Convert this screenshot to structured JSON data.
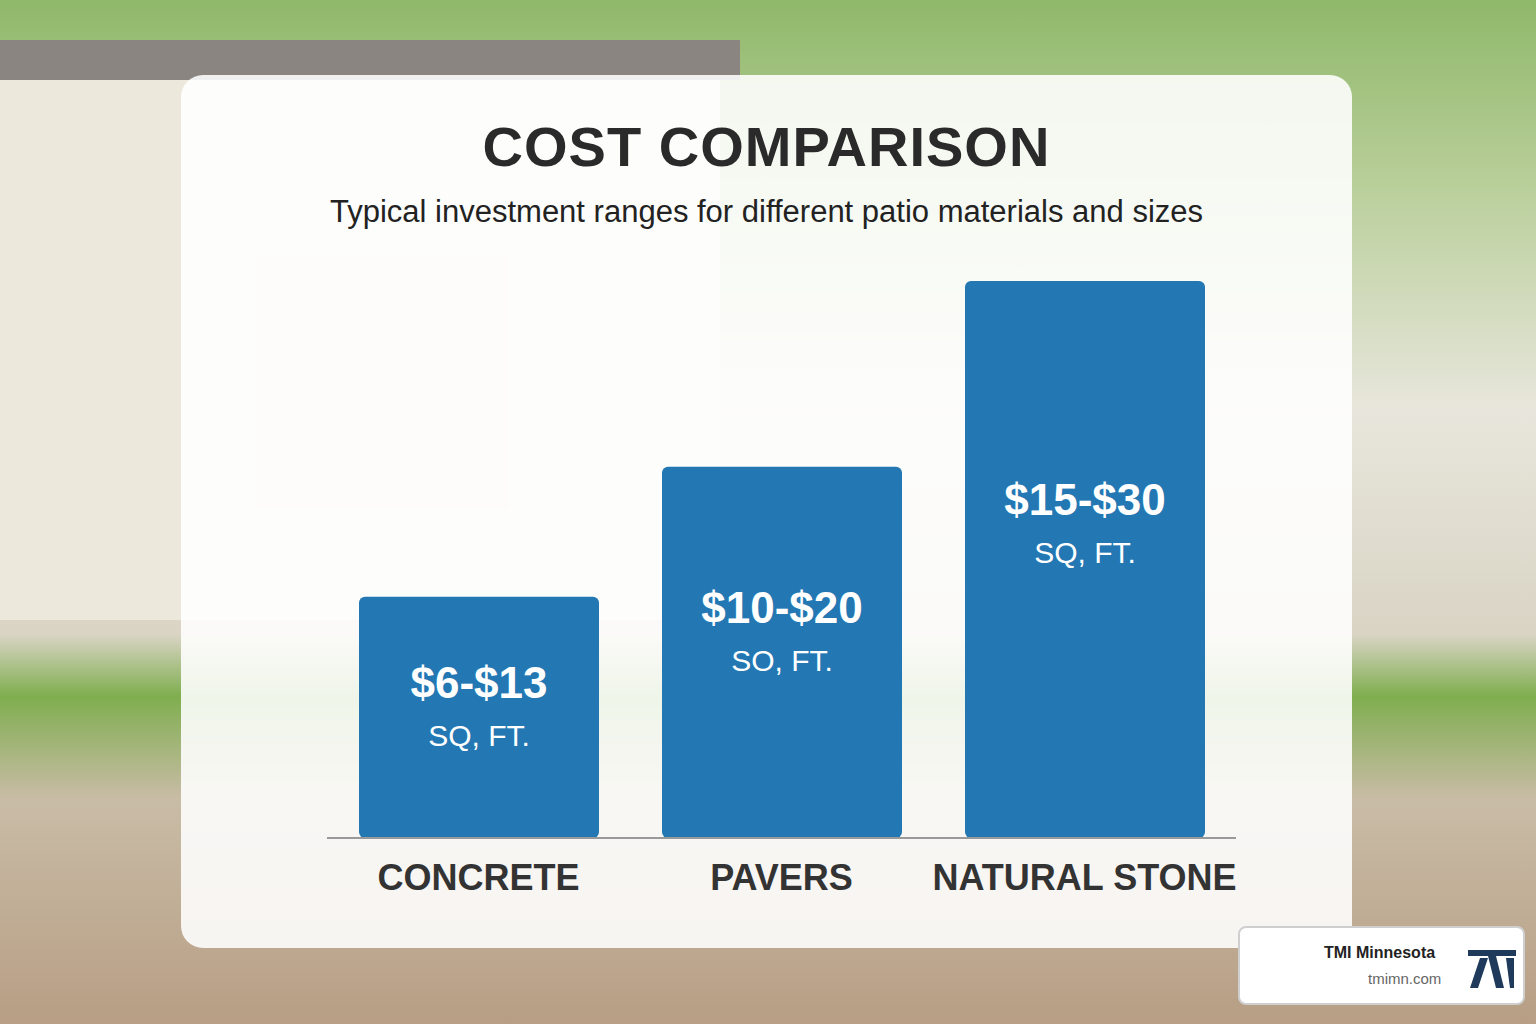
{
  "chart_data": {
    "type": "bar",
    "title": "COST COMPARISON",
    "subtitle": "Typical investment ranges for different patio materials and sizes",
    "categories": [
      "CONCRETE",
      "PAVERS",
      "NATURAL STONE"
    ],
    "values": [
      13,
      20,
      30
    ],
    "value_labels": [
      "$6-$13",
      "$10-$20",
      "$15-$30"
    ],
    "unit_labels": [
      "SQ, FT.",
      "SO, FT.",
      "SQ, FT."
    ],
    "color": "#2378b4",
    "ylim": [
      0,
      30
    ],
    "data_labels": true,
    "tick_labels": "x",
    "grid": false
  },
  "footer": {
    "brand": "TMI Minnesota",
    "url": "tmimn.com"
  }
}
